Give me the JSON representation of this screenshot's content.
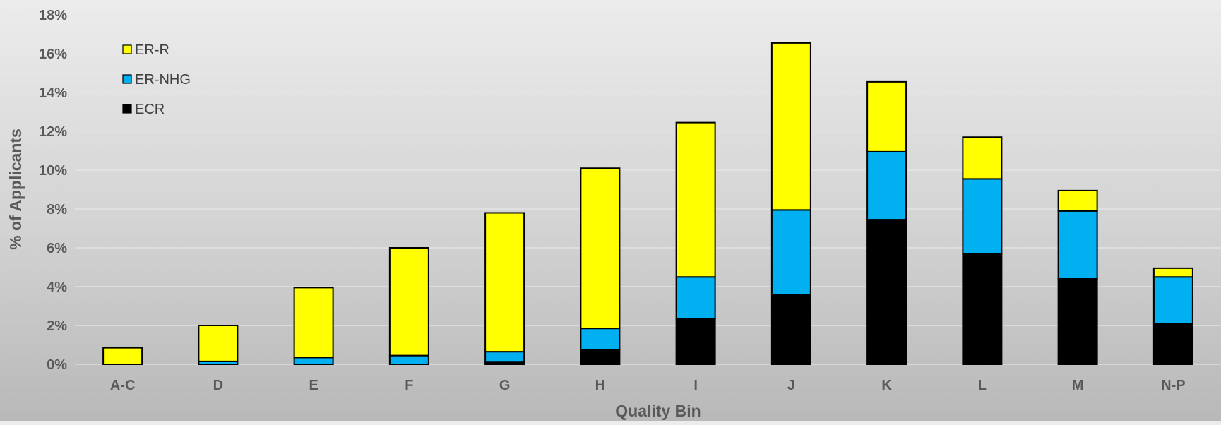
{
  "chart_data": {
    "type": "bar",
    "stacked": true,
    "title": "",
    "xlabel": "Quality Bin",
    "ylabel": "% of Applicants",
    "ylim": [
      0,
      18
    ],
    "ytick_step": 2,
    "ytick_suffix": "%",
    "grid": true,
    "legend_position": "top-left",
    "categories": [
      "A-C",
      "D",
      "E",
      "F",
      "G",
      "H",
      "I",
      "J",
      "K",
      "L",
      "M",
      "N-P"
    ],
    "series": [
      {
        "name": "ECR",
        "color": "#000000",
        "values": [
          0,
          0,
          0,
          0,
          0.1,
          0.75,
          2.35,
          3.6,
          7.45,
          5.7,
          4.4,
          2.1
        ]
      },
      {
        "name": "ER-NHG",
        "color": "#00b0f0",
        "values": [
          0,
          0.15,
          0.35,
          0.45,
          0.55,
          1.1,
          2.15,
          4.35,
          3.5,
          3.85,
          3.5,
          2.4
        ]
      },
      {
        "name": "ER-R",
        "color": "#ffff00",
        "values": [
          0.85,
          1.85,
          3.6,
          5.55,
          7.15,
          8.25,
          7.95,
          8.6,
          3.6,
          2.15,
          1.05,
          0.45
        ]
      }
    ],
    "legend_order": [
      "ER-R",
      "ER-NHG",
      "ECR"
    ]
  }
}
